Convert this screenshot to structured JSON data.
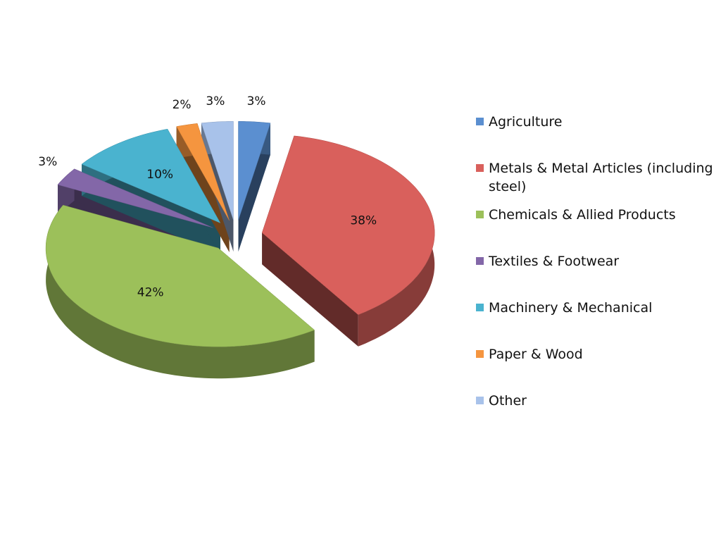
{
  "chart_data": {
    "type": "pie",
    "categories": [
      "Agriculture",
      "Metals & Metal Articles (including steel)",
      "Chemicals & Allied Products",
      "Textiles & Footwear",
      "Machinery & Mechanical",
      "Paper & Wood",
      "Other"
    ],
    "values": [
      3,
      38,
      42,
      3,
      10,
      2,
      3
    ],
    "value_labels": [
      "3%",
      "38%",
      "42%",
      "3%",
      "10%",
      "2%",
      "3%"
    ],
    "colors": [
      "#5b8fd0",
      "#d9605c",
      "#9cc05a",
      "#8367a8",
      "#4ab3cf",
      "#f5953f",
      "#a8c2ea"
    ],
    "legend": "right"
  }
}
